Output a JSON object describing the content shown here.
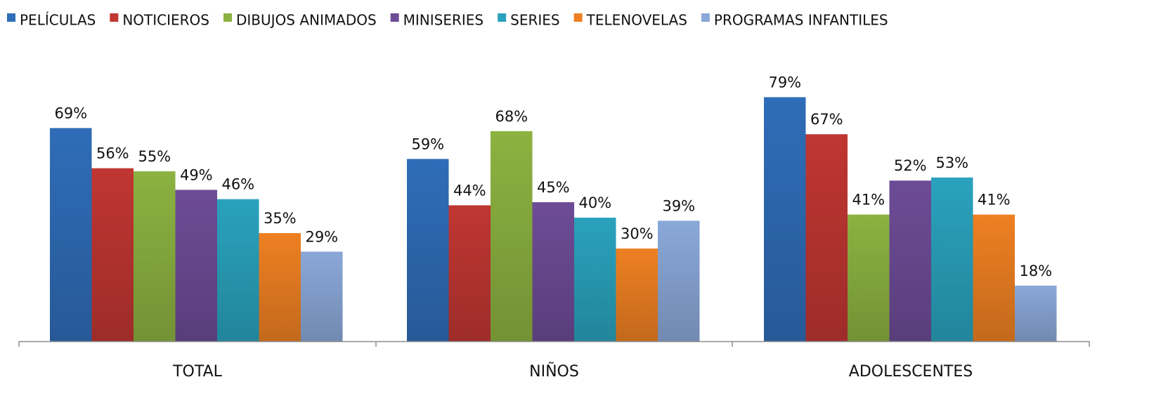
{
  "chart_data": {
    "type": "bar",
    "title": "",
    "xlabel": "",
    "ylabel": "",
    "ylim": [
      0,
      90
    ],
    "grid": false,
    "legend_position": "top",
    "categories": [
      "TOTAL",
      "NIÑOS",
      "ADOLESCENTES"
    ],
    "series": [
      {
        "name": "PELÍCULAS",
        "color": "#2f6db8",
        "values": [
          69,
          59,
          79
        ],
        "labels": [
          "69%",
          "59%",
          "79%"
        ]
      },
      {
        "name": "NOTICIEROS",
        "color": "#c03632",
        "values": [
          56,
          44,
          67
        ],
        "labels": [
          "56%",
          "44%",
          "67%"
        ]
      },
      {
        "name": "DIBUJOS ANIMADOS",
        "color": "#8cb241",
        "values": [
          55,
          68,
          41
        ],
        "labels": [
          "55%",
          "68%",
          "41%"
        ]
      },
      {
        "name": "MINISERIES",
        "color": "#6d4c96",
        "values": [
          49,
          45,
          52
        ],
        "labels": [
          "49%",
          "45%",
          "52%"
        ]
      },
      {
        "name": "SERIES",
        "color": "#2aa2bd",
        "values": [
          46,
          40,
          53
        ],
        "labels": [
          "46%",
          "40%",
          "53%"
        ]
      },
      {
        "name": "TELENOVELAS",
        "color": "#ee8022",
        "values": [
          35,
          30,
          41
        ],
        "labels": [
          "35%",
          "30%",
          "41%"
        ]
      },
      {
        "name": "PROGRAMAS INFANTILES",
        "color": "#8aa8d8",
        "values": [
          29,
          39,
          18
        ],
        "labels": [
          "29%",
          "39%",
          "18%"
        ]
      }
    ]
  }
}
